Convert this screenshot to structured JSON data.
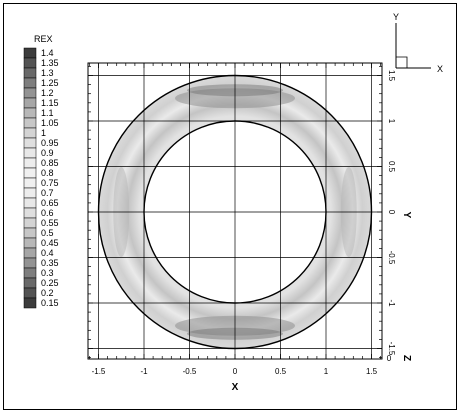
{
  "chart_data": {
    "type": "heatmap",
    "title": "",
    "xlabel": "X",
    "ylabel": "Y",
    "zlabel": "Z",
    "xlim": [
      -1.6,
      1.6
    ],
    "ylim": [
      -1.6,
      1.6
    ],
    "x_ticks": [
      "-1.5",
      "-1",
      "-0.5",
      "0",
      "0.5",
      "1",
      "1.5"
    ],
    "y_ticks": [
      "1.5",
      "1",
      "0.5",
      "0",
      "-0.5",
      "-1",
      "-1.5"
    ],
    "z_tick": "0",
    "grid": true,
    "variable": "REX",
    "legend_position": "left",
    "legend_levels": [
      "1.4",
      "1.35",
      "1.3",
      "1.25",
      "1.2",
      "1.15",
      "1.1",
      "1.05",
      "1",
      "0.95",
      "0.9",
      "0.85",
      "0.8",
      "0.75",
      "0.7",
      "0.65",
      "0.6",
      "0.55",
      "0.5",
      "0.45",
      "0.4",
      "0.35",
      "0.3",
      "0.25",
      "0.2",
      "0.15"
    ],
    "annulus": {
      "inner_radius": 1.0,
      "outer_radius": 1.5
    },
    "axis_triad": {
      "up": "Y",
      "right": "X"
    }
  }
}
